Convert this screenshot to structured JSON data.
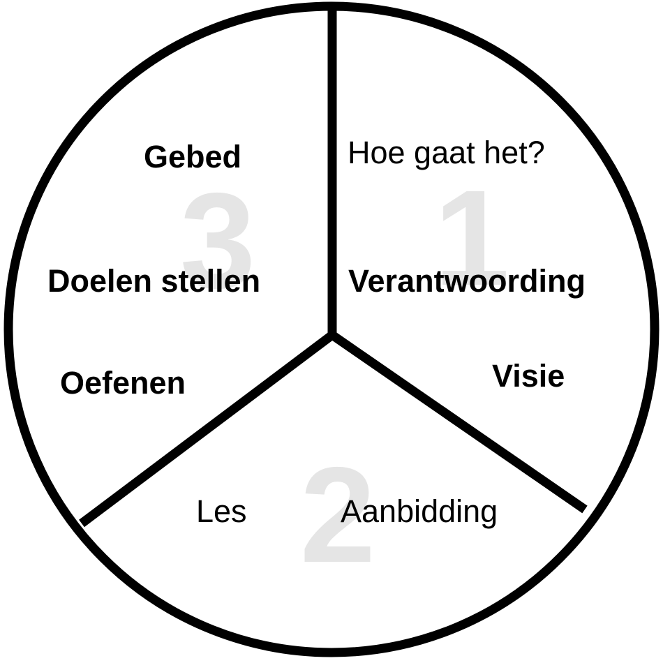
{
  "diagram": {
    "segments": [
      {
        "number": "1",
        "items": [
          {
            "text": "Hoe gaat het?",
            "bold": false
          },
          {
            "text": "Verantwoording",
            "bold": true
          },
          {
            "text": "Visie",
            "bold": true
          }
        ]
      },
      {
        "number": "2",
        "items": [
          {
            "text": "Les",
            "bold": false
          },
          {
            "text": "Aanbidding",
            "bold": false
          }
        ]
      },
      {
        "number": "3",
        "items": [
          {
            "text": "Gebed",
            "bold": true
          },
          {
            "text": "Doelen stellen",
            "bold": true
          },
          {
            "text": "Oefenen",
            "bold": true
          }
        ]
      }
    ],
    "colors": {
      "line": "#000000",
      "background": "#ffffff",
      "numeral": "#e5e5e5",
      "text": "#000000"
    }
  }
}
